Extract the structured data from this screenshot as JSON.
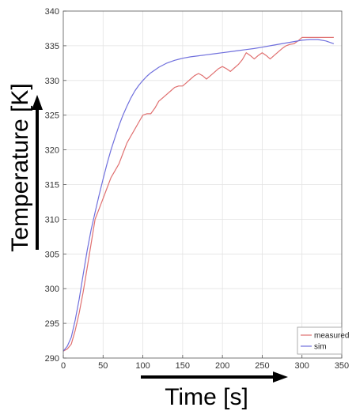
{
  "chart_data": {
    "type": "line",
    "xlabel": "Time [s]",
    "ylabel": "Temperature [K]",
    "xlim": [
      0,
      350
    ],
    "ylim": [
      290,
      340
    ],
    "xticks": [
      0,
      50,
      100,
      150,
      200,
      250,
      300,
      350
    ],
    "yticks": [
      290,
      295,
      300,
      305,
      310,
      315,
      320,
      325,
      330,
      335,
      340
    ],
    "grid": true,
    "legend_position": "bottom-right",
    "series": [
      {
        "name": "measured",
        "color": "#e07070",
        "x": [
          0,
          5,
          10,
          15,
          20,
          25,
          30,
          35,
          40,
          45,
          50,
          55,
          60,
          65,
          70,
          75,
          80,
          85,
          90,
          95,
          100,
          105,
          110,
          115,
          120,
          125,
          130,
          135,
          140,
          145,
          150,
          155,
          160,
          165,
          170,
          175,
          180,
          185,
          190,
          195,
          200,
          205,
          210,
          215,
          220,
          225,
          230,
          235,
          240,
          245,
          250,
          255,
          260,
          265,
          270,
          275,
          280,
          285,
          290,
          295,
          300,
          310,
          320,
          330,
          340
        ],
        "y": [
          291,
          291.3,
          292,
          294,
          296.5,
          299.5,
          303,
          306.5,
          310,
          311.5,
          313,
          314.5,
          316,
          317,
          318,
          319.5,
          321,
          322,
          323,
          324,
          325,
          325.2,
          325.2,
          326,
          327,
          327.5,
          328,
          328.5,
          329,
          329.2,
          329.2,
          329.7,
          330.2,
          330.7,
          331,
          330.7,
          330.2,
          330.7,
          331.2,
          331.7,
          332,
          331.7,
          331.3,
          331.8,
          332.3,
          333,
          334,
          333.6,
          333.1,
          333.6,
          334,
          333.6,
          333.1,
          333.6,
          334.1,
          334.6,
          335,
          335.2,
          335.3,
          335.7,
          336.2,
          336.2,
          336.2,
          336.2,
          336.2
        ]
      },
      {
        "name": "sim",
        "color": "#7070dd",
        "x": [
          0,
          5,
          10,
          15,
          20,
          25,
          30,
          35,
          40,
          45,
          50,
          55,
          60,
          65,
          70,
          75,
          80,
          85,
          90,
          95,
          100,
          105,
          110,
          115,
          120,
          125,
          130,
          135,
          140,
          145,
          150,
          160,
          170,
          180,
          190,
          200,
          210,
          220,
          230,
          240,
          250,
          260,
          270,
          280,
          290,
          300,
          310,
          320,
          330,
          340
        ],
        "y": [
          291,
          291.7,
          293,
          295.5,
          298.5,
          302,
          305.5,
          308.5,
          311,
          313.5,
          315.8,
          318,
          320,
          321.8,
          323.5,
          325,
          326.3,
          327.5,
          328.5,
          329.3,
          330,
          330.6,
          331.1,
          331.5,
          331.9,
          332.2,
          332.5,
          332.7,
          332.9,
          333.05,
          333.2,
          333.4,
          333.55,
          333.7,
          333.85,
          334,
          334.15,
          334.3,
          334.45,
          334.6,
          334.8,
          335,
          335.2,
          335.4,
          335.6,
          335.8,
          335.9,
          335.9,
          335.7,
          335.3
        ]
      }
    ]
  }
}
